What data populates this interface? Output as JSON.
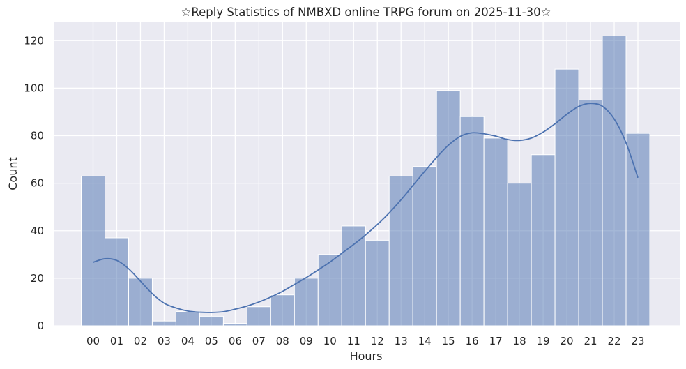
{
  "chart_data": {
    "type": "bar",
    "title": "☆Reply Statistics of NMBXD online TRPG forum on 2025-11-30☆",
    "xlabel": "Hours",
    "ylabel": "Count",
    "categories": [
      "00",
      "01",
      "02",
      "03",
      "04",
      "05",
      "06",
      "07",
      "08",
      "09",
      "10",
      "11",
      "12",
      "13",
      "14",
      "15",
      "16",
      "17",
      "18",
      "19",
      "20",
      "21",
      "22",
      "23"
    ],
    "values": [
      63,
      37,
      20,
      2,
      6,
      4,
      1,
      8,
      13,
      20,
      30,
      42,
      36,
      63,
      67,
      99,
      88,
      79,
      60,
      72,
      108,
      95,
      122,
      81
    ],
    "ylim": [
      0,
      128
    ],
    "yticks": [
      0,
      20,
      40,
      60,
      80,
      100,
      120
    ],
    "grid": true,
    "bar_color": "#4c72b0",
    "bar_opacity": 0.5,
    "kde_color": "#4c72b0",
    "background_color": "#eaeaf2",
    "kde_curve": {
      "x": [
        0,
        0.5,
        1,
        1.5,
        2,
        2.5,
        3,
        3.5,
        4,
        4.5,
        5,
        5.5,
        6,
        6.5,
        7,
        7.5,
        8,
        8.5,
        9,
        9.5,
        10,
        10.5,
        11,
        11.5,
        12,
        12.5,
        13,
        13.5,
        14,
        14.5,
        15,
        15.5,
        16,
        16.5,
        17,
        17.5,
        18,
        18.5,
        19,
        19.5,
        20,
        20.5,
        21,
        21.5,
        22,
        22.5,
        23
      ],
      "y": [
        26.7,
        28.2,
        27.5,
        24,
        18.8,
        13.5,
        9.5,
        7.5,
        6.2,
        5.7,
        5.6,
        5.9,
        7,
        8.3,
        10,
        12.1,
        14.5,
        17.4,
        20.3,
        23.5,
        26.8,
        30.5,
        34.2,
        38.2,
        42.6,
        47.5,
        53,
        59,
        65,
        70.8,
        76,
        79.7,
        81.2,
        80.8,
        79.8,
        78.4,
        78,
        79,
        81.5,
        85,
        89,
        92.3,
        93.6,
        92.4,
        87,
        77,
        62.3
      ]
    }
  }
}
